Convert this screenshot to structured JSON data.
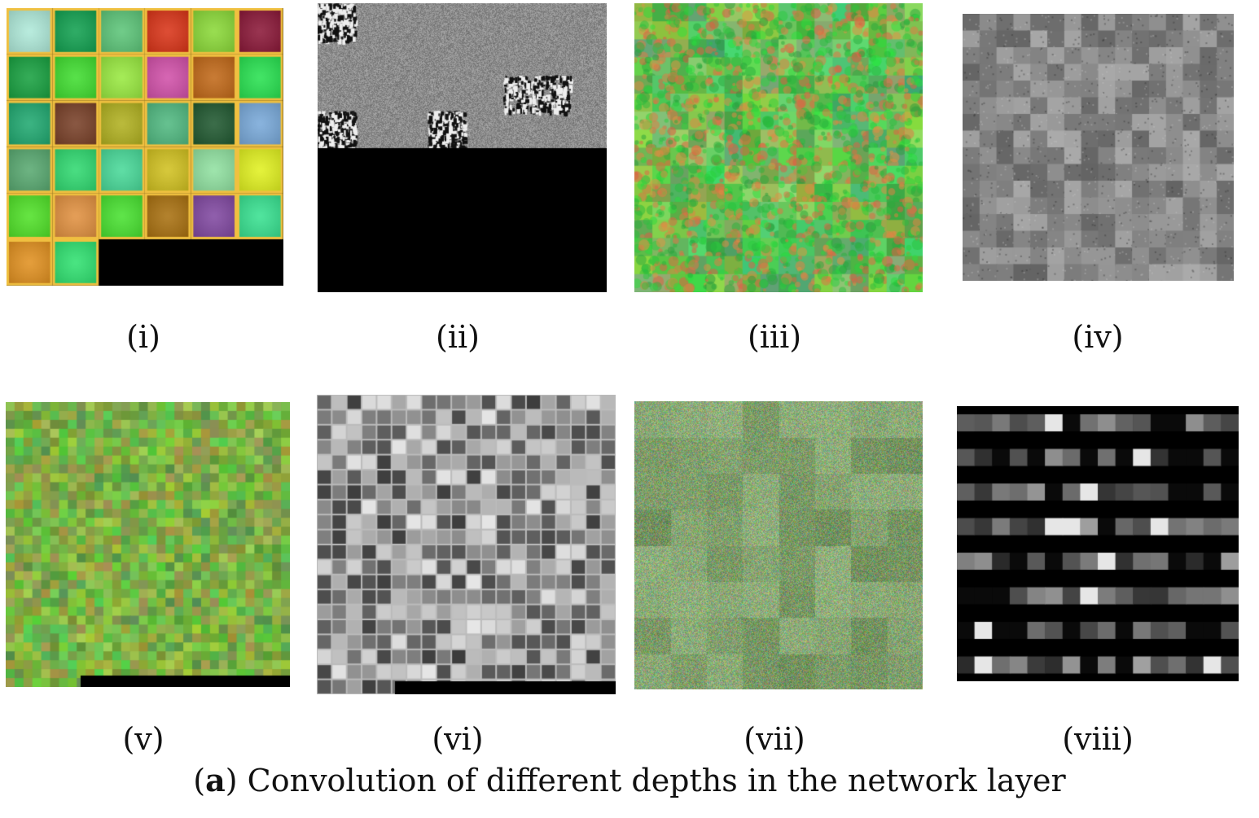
{
  "figure": {
    "panels": [
      {
        "id": "i",
        "label": "(i)",
        "style": "rgb-large"
      },
      {
        "id": "ii",
        "label": "(ii)",
        "style": "gray-sparse"
      },
      {
        "id": "iii",
        "label": "(iii)",
        "style": "rgb-medium"
      },
      {
        "id": "iv",
        "label": "(iv)",
        "style": "gray-medium"
      },
      {
        "id": "v",
        "label": "(v)",
        "style": "rgb-fine"
      },
      {
        "id": "vi",
        "label": "(vi)",
        "style": "gray-grid"
      },
      {
        "id": "vii",
        "label": "(vii)",
        "style": "rgb-noise"
      },
      {
        "id": "viii",
        "label": "(viii)",
        "style": "gray-bars"
      }
    ],
    "caption": {
      "letter": "a",
      "text": "Convolution of different depths in the network layer"
    }
  }
}
